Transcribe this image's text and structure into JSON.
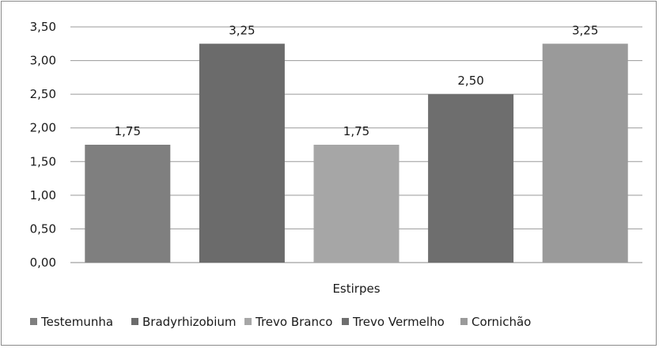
{
  "chart_data": {
    "type": "bar",
    "title": "",
    "xlabel": "Estirpes",
    "ylabel": "",
    "ylim": [
      0,
      3.5
    ],
    "y_ticks": [
      "0,00",
      "0,50",
      "1,00",
      "1,50",
      "2,00",
      "2,50",
      "3,00",
      "3,50"
    ],
    "y_tick_values": [
      0,
      0.5,
      1.0,
      1.5,
      2.0,
      2.5,
      3.0,
      3.5
    ],
    "grid": true,
    "legend_position": "bottom",
    "series": [
      {
        "name": "Testemunha",
        "value": 1.75,
        "label": "1,75",
        "color": "#7f7f7f"
      },
      {
        "name": "Bradyrhizobium",
        "value": 3.25,
        "label": "3,25",
        "color": "#6b6b6b"
      },
      {
        "name": "Trevo Branco",
        "value": 1.75,
        "label": "1,75",
        "color": "#a6a6a6"
      },
      {
        "name": "Trevo Vermelho",
        "value": 2.5,
        "label": "2,50",
        "color": "#6e6e6e"
      },
      {
        "name": "Cornichão",
        "value": 3.25,
        "label": "3,25",
        "color": "#9a9a9a"
      }
    ]
  }
}
